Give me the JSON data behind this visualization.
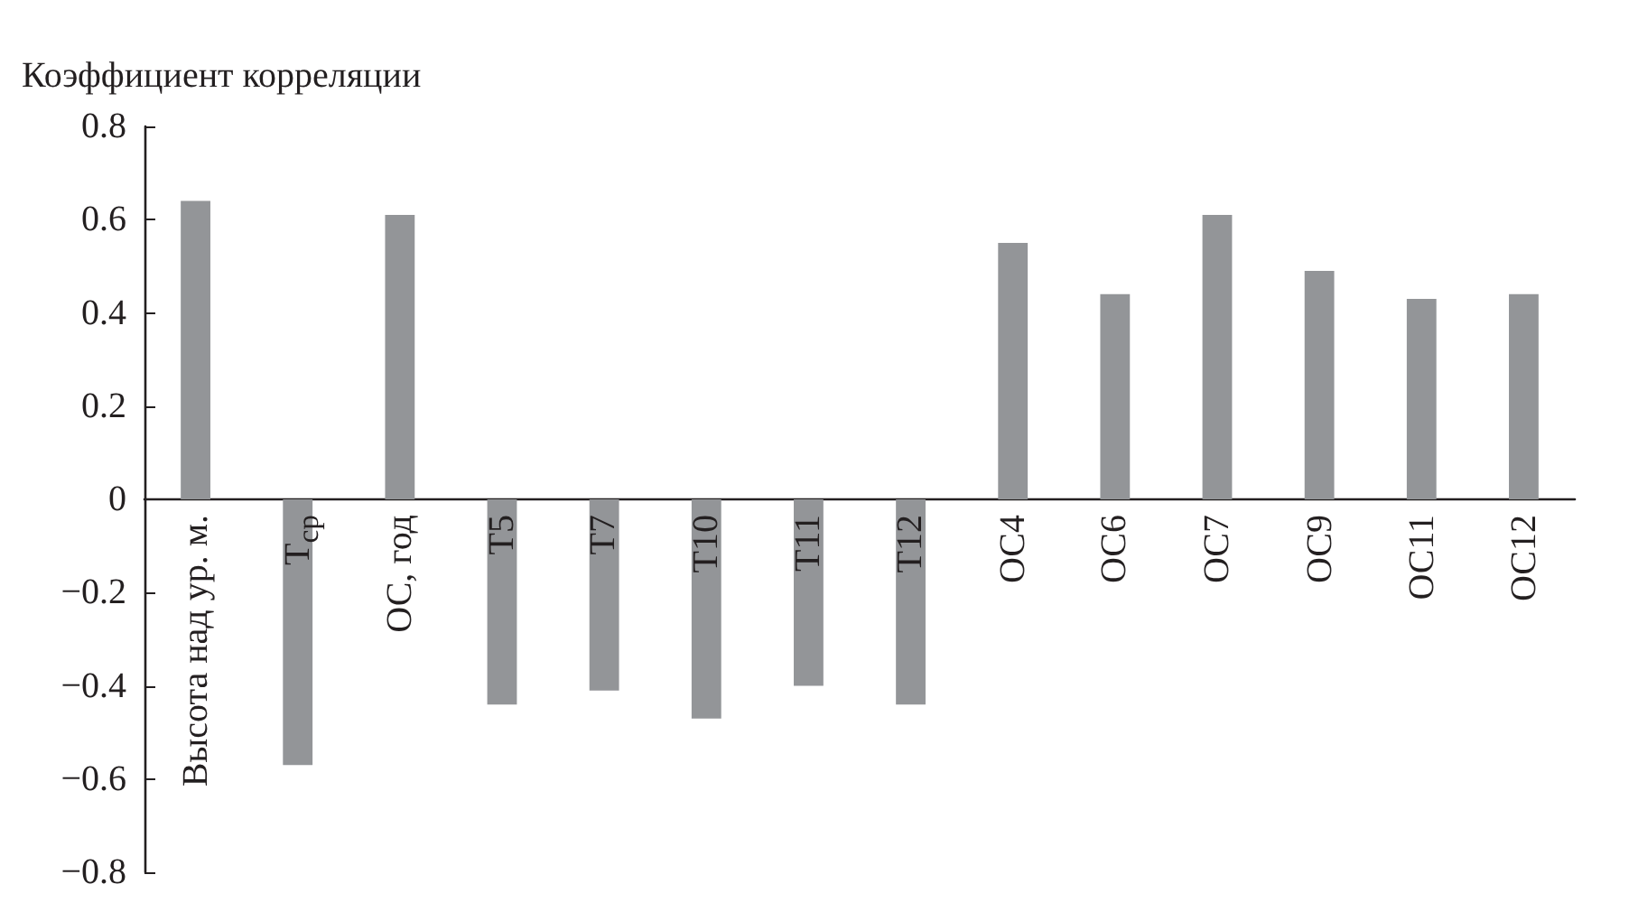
{
  "chart_data": {
    "type": "bar",
    "ylabel": "Коэффициент корреляции",
    "categories": [
      "Высота над ур. м.",
      "T$_{ср}$",
      "ОС, год",
      "Т5",
      "Т7",
      "Т10",
      "Т11",
      "Т12",
      "ОС4",
      "ОС6",
      "ОС7",
      "ОС9",
      "ОС11",
      "ОС12"
    ],
    "values": [
      0.64,
      -0.57,
      0.61,
      -0.44,
      -0.41,
      -0.47,
      -0.4,
      -0.44,
      0.55,
      0.44,
      0.61,
      0.49,
      0.43,
      0.44
    ],
    "color": "#939598",
    "ylim": [
      -0.8,
      0.8
    ],
    "yticks": [
      {
        "value": -0.8,
        "label": "−0.8"
      },
      {
        "value": -0.6,
        "label": "−0.6"
      },
      {
        "value": -0.4,
        "label": "−0.4"
      },
      {
        "value": -0.2,
        "label": "−0.2"
      },
      0,
      0.2,
      0.4,
      0.6,
      0.8
    ]
  }
}
